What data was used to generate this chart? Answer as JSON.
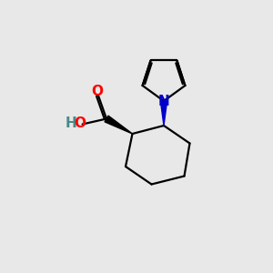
{
  "background_color": "#e8e8e8",
  "bond_color": "#000000",
  "N_color": "#0000cc",
  "O_color": "#ff0000",
  "H_color": "#4a8888",
  "line_width": 1.6,
  "figsize": [
    3.0,
    3.0
  ],
  "dpi": 100,
  "xlim": [
    0,
    10
  ],
  "ylim": [
    0,
    10
  ]
}
